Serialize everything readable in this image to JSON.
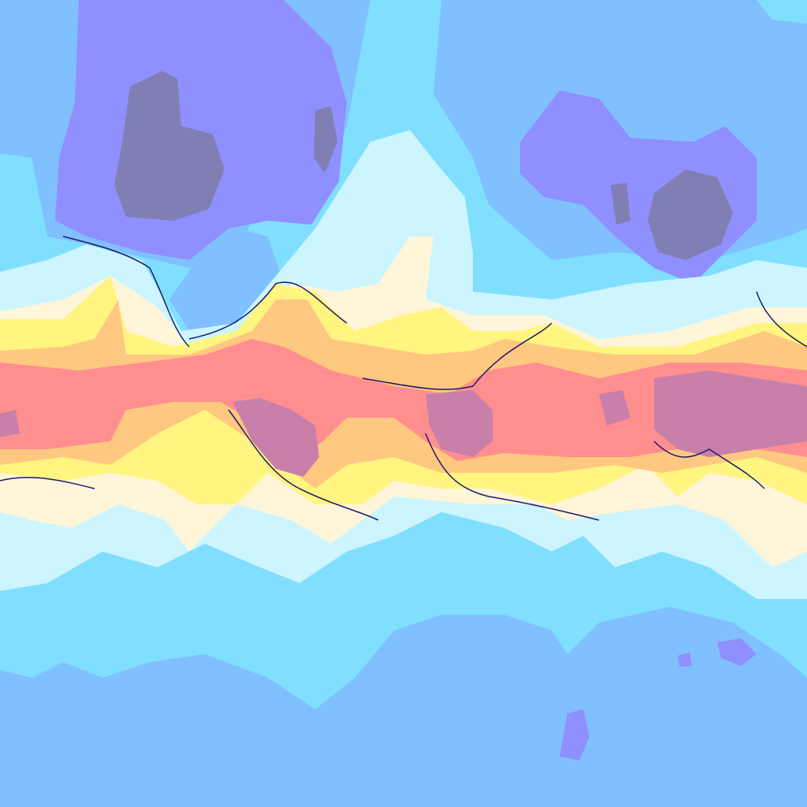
{
  "map": {
    "type": "temperature-field",
    "palette": {
      "very_cold": "#7f7fb4",
      "cold": "#8f8fff",
      "cool": "#80c0ff",
      "mild_cool": "#80dfff",
      "mild": "#ccf5ff",
      "neutral": "#fff5d9",
      "warm": "#fff580",
      "hot": "#ffc880",
      "very_hot": "#ff8f8f",
      "extreme": "#c880aa"
    }
  }
}
